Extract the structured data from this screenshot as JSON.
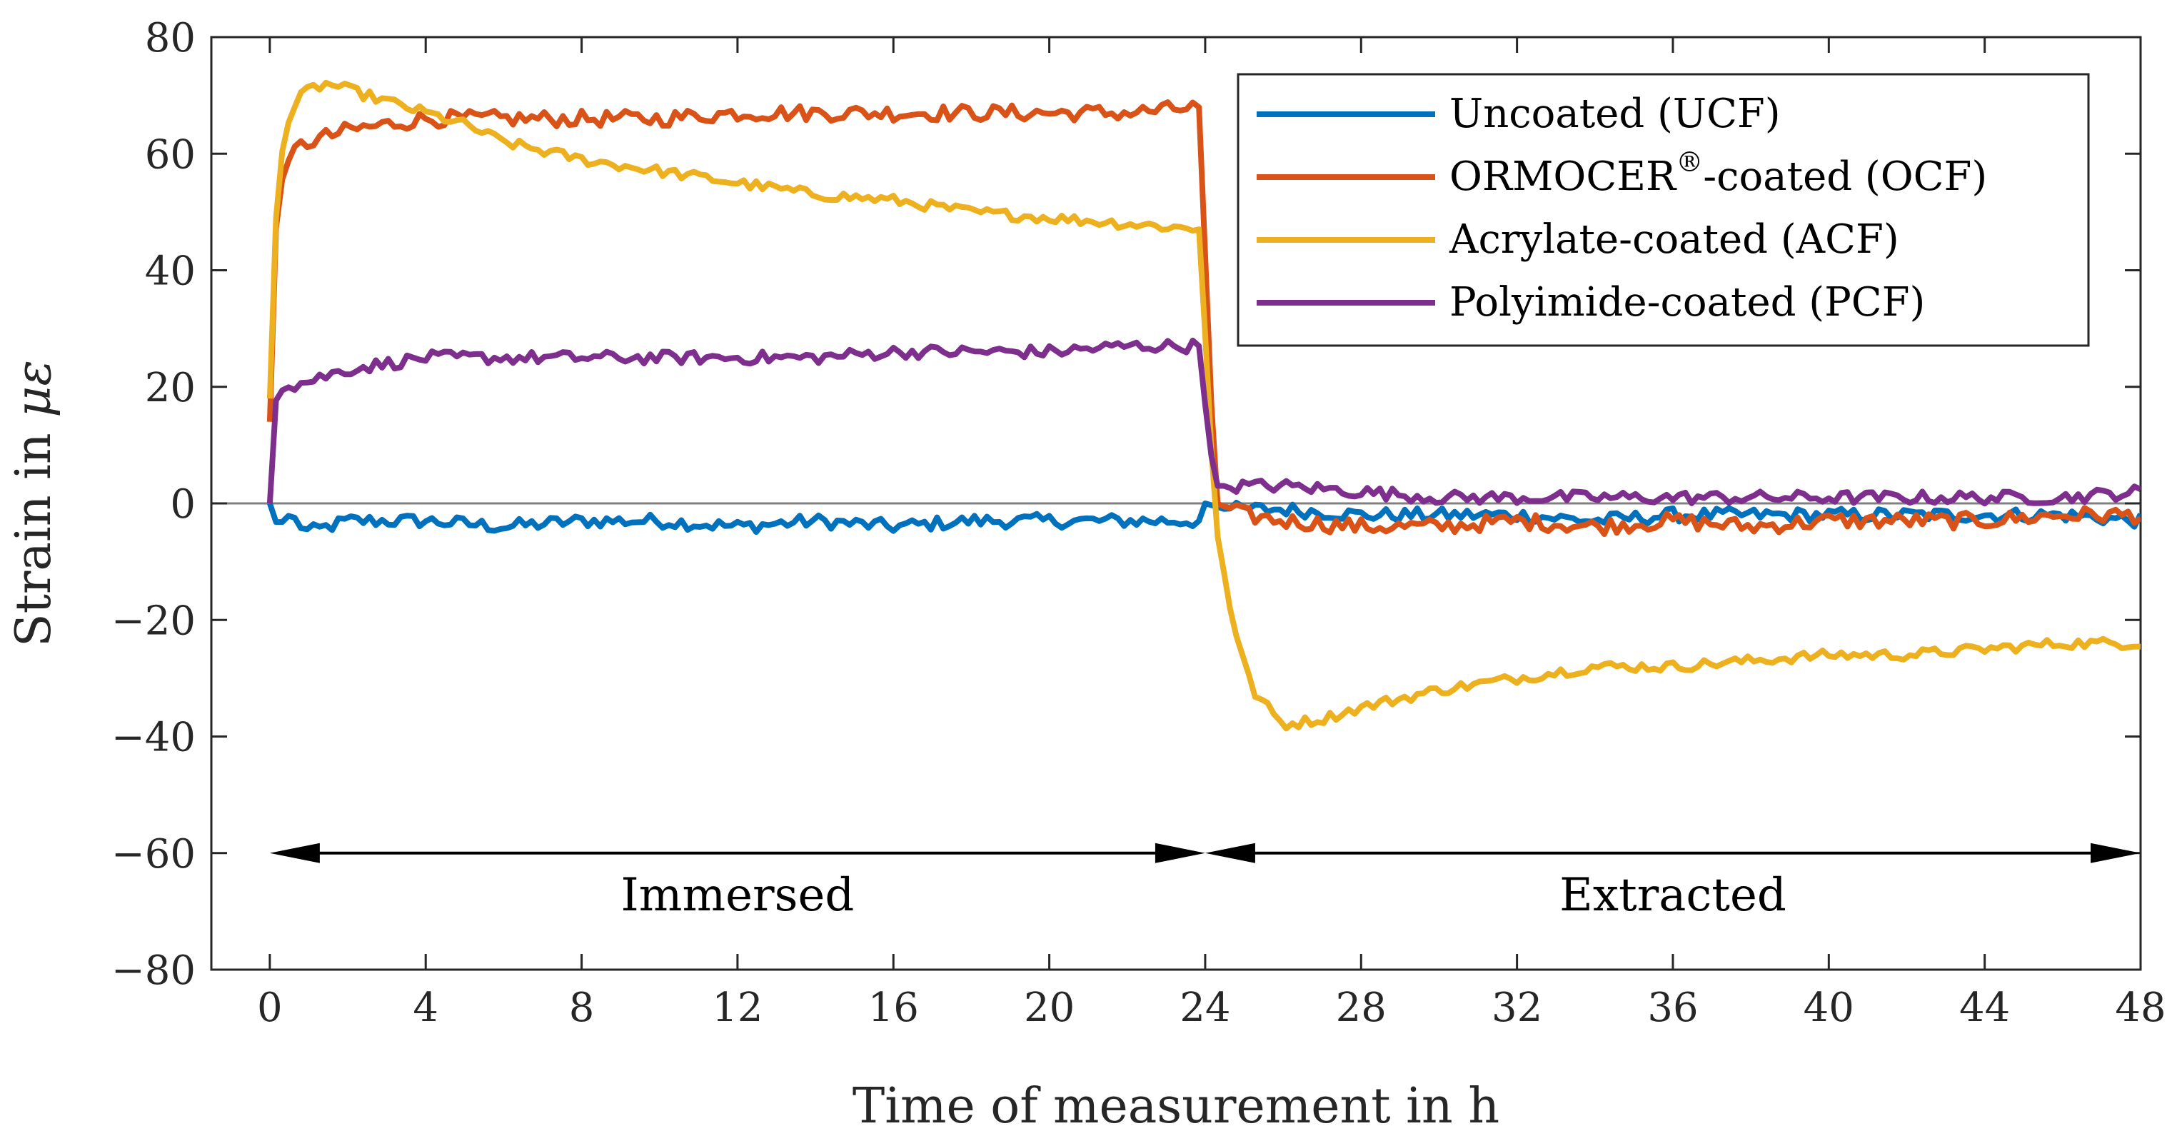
{
  "chart_data": {
    "type": "line",
    "xlabel": "Time of measurement in h",
    "ylabel_prefix": "Strain in ",
    "ylabel_unit": "με",
    "xlim": [
      -1.5,
      48
    ],
    "ylim": [
      -80,
      80
    ],
    "xticks": [
      0,
      4,
      8,
      12,
      16,
      20,
      24,
      28,
      32,
      36,
      40,
      44,
      48
    ],
    "yticks": [
      -80,
      -60,
      -40,
      -20,
      0,
      20,
      40,
      60,
      80
    ],
    "xtick_labels": [
      "0",
      "4",
      "8",
      "12",
      "16",
      "20",
      "24",
      "28",
      "32",
      "36",
      "40",
      "44",
      "48"
    ],
    "ytick_labels": [
      "−80",
      "−60",
      "−40",
      "−20",
      "0",
      "20",
      "40",
      "60",
      "80"
    ],
    "zero_line": true,
    "legend_position": "top-right",
    "series": [
      {
        "name": "Uncoated (UCF)",
        "legend_main": "Uncoated (UCF)",
        "legend_sup": "",
        "legend_tail": "",
        "color": "#0072BD",
        "x": [
          0,
          0.2,
          0.5,
          1,
          2,
          4,
          6,
          8,
          10,
          12,
          14,
          16,
          18,
          20,
          22,
          23.9,
          24.0,
          24.5,
          26,
          28,
          30,
          32,
          34,
          36,
          38,
          40,
          42,
          44,
          46,
          48
        ],
        "y": [
          0,
          -4,
          -2,
          -5,
          -3,
          -3,
          -4,
          -3,
          -3,
          -4,
          -3,
          -4,
          -3,
          -3,
          -3,
          -3,
          0,
          -1,
          -1,
          -2,
          -2,
          -2,
          -3,
          -2,
          -2,
          -2,
          -2,
          -2,
          -2,
          -3
        ]
      },
      {
        "name": "ORMOCER-coated (OCF)",
        "legend_main": "ORMOCER",
        "legend_sup": "®",
        "legend_tail": "-coated (OCF)",
        "color": "#D95319",
        "x": [
          0,
          0.1,
          0.2,
          0.4,
          0.7,
          1,
          1.5,
          2,
          3,
          4,
          6,
          8,
          10,
          12,
          14,
          16,
          18,
          20,
          22,
          23.9,
          24.05,
          24.3,
          25,
          26,
          28,
          30,
          32,
          34,
          36,
          38,
          40,
          42,
          44,
          46,
          48
        ],
        "y": [
          14,
          40,
          52,
          58,
          61,
          62,
          63,
          64,
          65,
          66,
          66,
          66,
          66,
          67,
          67,
          67,
          67,
          67,
          67,
          68,
          30,
          0,
          -2,
          -3,
          -4,
          -4,
          -3,
          -4,
          -3,
          -4,
          -3,
          -3,
          -3,
          -2,
          -2
        ]
      },
      {
        "name": "Acrylate-coated (ACF)",
        "legend_main": "Acrylate-coated (ACF)",
        "legend_sup": "",
        "legend_tail": "",
        "color": "#EDB120",
        "x": [
          0,
          0.1,
          0.2,
          0.4,
          0.7,
          1,
          1.5,
          2,
          3,
          4,
          5,
          6,
          8,
          10,
          12,
          14,
          16,
          18,
          20,
          22,
          23.9,
          24.05,
          24.3,
          24.7,
          25.2,
          26,
          27,
          28,
          30,
          32,
          34,
          36,
          38,
          40,
          42,
          44,
          46,
          48
        ],
        "y": [
          18,
          40,
          55,
          64,
          69,
          71,
          72,
          71,
          69,
          67,
          65,
          62,
          59,
          57,
          55,
          53,
          52,
          50,
          49,
          48,
          47,
          20,
          -5,
          -20,
          -32,
          -38,
          -37,
          -35,
          -32,
          -30,
          -28,
          -28,
          -27,
          -26,
          -26,
          -25,
          -24,
          -24
        ]
      },
      {
        "name": "Polyimide-coated (PCF)",
        "legend_main": "Polyimide-coated (PCF)",
        "legend_sup": "",
        "legend_tail": "",
        "color": "#7E2F8E",
        "x": [
          0,
          0.05,
          0.2,
          0.5,
          1,
          2,
          4,
          6,
          8,
          10,
          12,
          14,
          16,
          18,
          20,
          22,
          23.9,
          24.05,
          24.3,
          25,
          26,
          28,
          30,
          32,
          34,
          36,
          38,
          40,
          42,
          44,
          46,
          48
        ],
        "y": [
          0,
          14,
          19,
          20,
          21,
          23,
          25,
          25,
          25,
          25,
          25,
          25,
          26,
          26,
          26,
          27,
          27,
          12,
          3,
          3,
          3,
          2,
          1,
          1,
          1,
          1,
          1,
          1,
          1,
          1,
          1,
          2
        ]
      }
    ],
    "annotations": {
      "immersed": {
        "label": "Immersed",
        "from": 0,
        "to": 24,
        "y": -60
      },
      "extracted": {
        "label": "Extracted",
        "from": 24,
        "to": 48,
        "y": -60
      }
    }
  }
}
